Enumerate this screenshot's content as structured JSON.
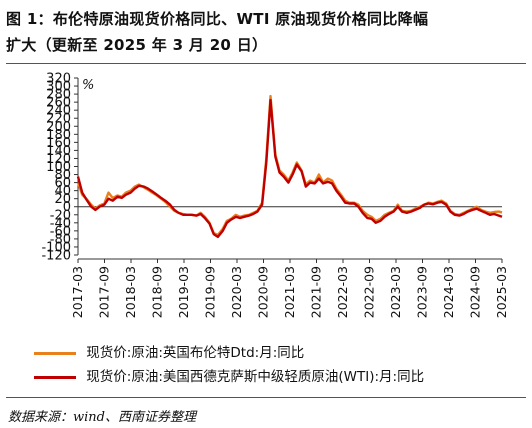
{
  "title_line1": "图 1：布伦特原油现货价格同比、WTI 原油现货价格同比降幅",
  "title_line2": "扩大（更新至 2025 年 3 月 20 日）",
  "source": "数据来源：wind、西南证券整理",
  "chart_data": {
    "type": "line",
    "ylabel": "%",
    "ylim": [
      -120,
      320
    ],
    "yticks": [
      -120,
      -100,
      -80,
      -60,
      -40,
      -20,
      0,
      20,
      40,
      60,
      80,
      100,
      120,
      140,
      160,
      180,
      200,
      220,
      240,
      260,
      280,
      300,
      320
    ],
    "xlim": [
      2017.17,
      2025.23
    ],
    "xtick_labels": [
      "2017-03",
      "2017-09",
      "2018-03",
      "2018-09",
      "2019-03",
      "2019-09",
      "2020-03",
      "2020-09",
      "2021-03",
      "2021-09",
      "2022-03",
      "2022-09",
      "2023-03",
      "2023-09",
      "2024-03",
      "2024-09",
      "2025-03"
    ],
    "colors": {
      "brent": "#e8801c",
      "wti": "#c00000"
    },
    "legend_placement": "bottom",
    "series": [
      {
        "name": "现货价:原油:英国布伦特Dtd:月:同比",
        "key": "brent",
        "x": [
          2017.17,
          2017.25,
          2017.33,
          2017.42,
          2017.5,
          2017.58,
          2017.67,
          2017.75,
          2017.83,
          2017.92,
          2018.0,
          2018.08,
          2018.17,
          2018.25,
          2018.33,
          2018.42,
          2018.5,
          2018.58,
          2018.67,
          2018.75,
          2018.83,
          2018.92,
          2019.0,
          2019.08,
          2019.17,
          2019.25,
          2019.33,
          2019.42,
          2019.5,
          2019.58,
          2019.67,
          2019.75,
          2019.83,
          2019.92,
          2020.0,
          2020.08,
          2020.17,
          2020.25,
          2020.33,
          2020.42,
          2020.5,
          2020.58,
          2020.67,
          2020.75,
          2020.83,
          2020.92,
          2021.0,
          2021.08,
          2021.17,
          2021.25,
          2021.33,
          2021.42,
          2021.5,
          2021.58,
          2021.67,
          2021.75,
          2021.83,
          2021.92,
          2022.0,
          2022.08,
          2022.17,
          2022.25,
          2022.33,
          2022.42,
          2022.5,
          2022.58,
          2022.67,
          2022.75,
          2022.83,
          2022.92,
          2023.0,
          2023.08,
          2023.17,
          2023.25,
          2023.33,
          2023.42,
          2023.5,
          2023.58,
          2023.67,
          2023.75,
          2023.83,
          2023.92,
          2024.0,
          2024.08,
          2024.17,
          2024.25,
          2024.33,
          2024.42,
          2024.5,
          2024.58,
          2024.67,
          2024.75,
          2024.83,
          2024.92,
          2025.0,
          2025.08,
          2025.17,
          2025.23
        ],
        "values": [
          60,
          30,
          20,
          5,
          -5,
          3,
          8,
          35,
          22,
          28,
          25,
          35,
          40,
          50,
          55,
          48,
          42,
          35,
          28,
          20,
          12,
          0,
          -10,
          -15,
          -18,
          -20,
          -20,
          -22,
          -15,
          -25,
          -40,
          -65,
          -70,
          -55,
          -35,
          -30,
          -20,
          -25,
          -22,
          -20,
          -15,
          -10,
          10,
          120,
          275,
          130,
          90,
          80,
          65,
          85,
          110,
          90,
          55,
          65,
          60,
          80,
          60,
          70,
          65,
          45,
          30,
          15,
          10,
          10,
          5,
          -10,
          -20,
          -25,
          -35,
          -30,
          -20,
          -15,
          -10,
          5,
          -10,
          -12,
          -10,
          -5,
          0,
          5,
          10,
          8,
          12,
          15,
          8,
          -10,
          -18,
          -20,
          -15,
          -10,
          -5,
          0,
          -8,
          -12,
          -15,
          -13,
          -12,
          -14
        ]
      },
      {
        "name": "现货价:原油:美国西德克萨斯中级轻质原油(WTI):月:同比",
        "key": "wti",
        "x": [
          2017.17,
          2017.25,
          2017.33,
          2017.42,
          2017.5,
          2017.58,
          2017.67,
          2017.75,
          2017.83,
          2017.92,
          2018.0,
          2018.08,
          2018.17,
          2018.25,
          2018.33,
          2018.42,
          2018.5,
          2018.58,
          2018.67,
          2018.75,
          2018.83,
          2018.92,
          2019.0,
          2019.08,
          2019.17,
          2019.25,
          2019.33,
          2019.42,
          2019.5,
          2019.58,
          2019.67,
          2019.75,
          2019.83,
          2019.92,
          2020.0,
          2020.08,
          2020.17,
          2020.25,
          2020.33,
          2020.42,
          2020.5,
          2020.58,
          2020.67,
          2020.75,
          2020.83,
          2020.92,
          2021.0,
          2021.08,
          2021.17,
          2021.25,
          2021.33,
          2021.42,
          2021.5,
          2021.58,
          2021.67,
          2021.75,
          2021.83,
          2021.92,
          2022.0,
          2022.08,
          2022.17,
          2022.25,
          2022.33,
          2022.42,
          2022.5,
          2022.58,
          2022.67,
          2022.75,
          2022.83,
          2022.92,
          2023.0,
          2023.08,
          2023.17,
          2023.25,
          2023.33,
          2023.42,
          2023.5,
          2023.58,
          2023.67,
          2023.75,
          2023.83,
          2023.92,
          2024.0,
          2024.08,
          2024.17,
          2024.25,
          2024.33,
          2024.42,
          2024.5,
          2024.58,
          2024.67,
          2024.75,
          2024.83,
          2024.92,
          2025.0,
          2025.08,
          2025.17,
          2025.23
        ],
        "values": [
          75,
          35,
          18,
          0,
          -8,
          0,
          5,
          20,
          15,
          25,
          22,
          30,
          35,
          45,
          52,
          50,
          45,
          38,
          30,
          22,
          15,
          5,
          -8,
          -15,
          -20,
          -20,
          -20,
          -22,
          -18,
          -28,
          -42,
          -68,
          -75,
          -60,
          -40,
          -32,
          -25,
          -28,
          -25,
          -22,
          -18,
          -12,
          5,
          110,
          265,
          125,
          85,
          75,
          60,
          80,
          105,
          88,
          50,
          60,
          58,
          70,
          58,
          62,
          58,
          40,
          25,
          10,
          8,
          8,
          0,
          -15,
          -28,
          -30,
          -40,
          -35,
          -25,
          -18,
          -12,
          0,
          -12,
          -15,
          -12,
          -8,
          -3,
          5,
          8,
          6,
          10,
          12,
          5,
          -12,
          -20,
          -22,
          -18,
          -12,
          -8,
          -5,
          -10,
          -15,
          -20,
          -18,
          -22,
          -25
        ]
      }
    ]
  }
}
